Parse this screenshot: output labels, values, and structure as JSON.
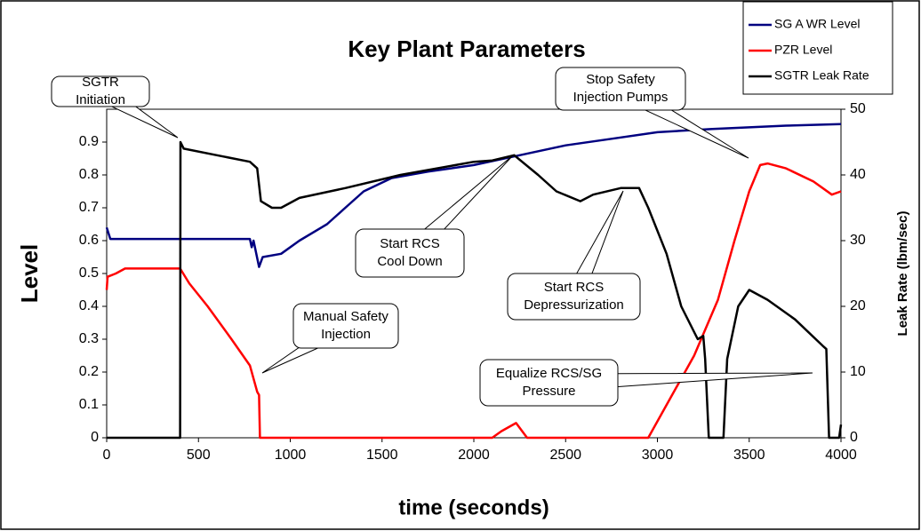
{
  "chart_data": {
    "type": "line",
    "title": "Key Plant Parameters",
    "x_label": "time (seconds)",
    "y_label": "Level",
    "y2_label": "Leak Rate (lbm/sec)",
    "xlim": [
      0,
      4000
    ],
    "xticks": [
      0,
      500,
      1000,
      1500,
      2000,
      2500,
      3000,
      3500,
      4000
    ],
    "ylim": [
      0,
      1
    ],
    "yticks": [
      0,
      0.1,
      0.2,
      0.3,
      0.4,
      0.5,
      0.6,
      0.7,
      0.8,
      0.9
    ],
    "y2lim": [
      0,
      50
    ],
    "y2ticks": [
      0,
      10,
      20,
      30,
      40,
      50
    ],
    "legend": "top-right",
    "series": [
      {
        "name": "SG A WR Level",
        "color": "#000080",
        "x": [
          0,
          20,
          780,
          790,
          800,
          830,
          850,
          950,
          1050,
          1200,
          1300,
          1400,
          1550,
          1750,
          2000,
          2250,
          2500,
          2750,
          3000,
          3300,
          3700,
          4000
        ],
        "values": [
          0.64,
          0.605,
          0.605,
          0.58,
          0.6,
          0.52,
          0.55,
          0.56,
          0.6,
          0.65,
          0.7,
          0.75,
          0.79,
          0.81,
          0.83,
          0.86,
          0.89,
          0.91,
          0.93,
          0.94,
          0.95,
          0.955
        ]
      },
      {
        "name": "PZR Level",
        "color": "#ff0000",
        "x": [
          0,
          5,
          50,
          100,
          400,
          450,
          550,
          680,
          780,
          820,
          830,
          835,
          2100,
          2150,
          2230,
          2290,
          2950,
          3050,
          3200,
          3330,
          3420,
          3500,
          3560,
          3600,
          3700,
          3850,
          3950,
          4000
        ],
        "values": [
          0.45,
          0.49,
          0.5,
          0.515,
          0.515,
          0.47,
          0.4,
          0.3,
          0.22,
          0.14,
          0.13,
          0,
          0,
          0.02,
          0.045,
          0,
          0,
          0.1,
          0.25,
          0.42,
          0.6,
          0.75,
          0.83,
          0.835,
          0.82,
          0.78,
          0.74,
          0.75
        ]
      },
      {
        "name": "SGTR Leak Rate",
        "color": "#000000",
        "axis": "y2",
        "x": [
          0,
          400,
          402,
          420,
          600,
          780,
          820,
          840,
          900,
          950,
          1050,
          1300,
          1600,
          2000,
          2100,
          2220,
          2350,
          2450,
          2580,
          2650,
          2800,
          2900,
          2950,
          3050,
          3130,
          3220,
          3250,
          3260,
          3280,
          3360,
          3380,
          3440,
          3500,
          3600,
          3750,
          3900,
          3920,
          3935,
          3990,
          4000
        ],
        "values": [
          0,
          0,
          45,
          44,
          43,
          42,
          41,
          36,
          35,
          35,
          36.5,
          38,
          40,
          42,
          42.2,
          43,
          40,
          37.5,
          36,
          37,
          38,
          38,
          35,
          28,
          20,
          15,
          15.5,
          12,
          0,
          0,
          12,
          20,
          22.5,
          21,
          18,
          14,
          13.5,
          0,
          0,
          2
        ]
      }
    ],
    "annotations": [
      {
        "lines": [
          "SGTR",
          "Initiation"
        ]
      },
      {
        "lines": [
          "Start RCS",
          "Cool Down"
        ]
      },
      {
        "lines": [
          "Start RCS",
          "Depressurization"
        ]
      },
      {
        "lines": [
          "Manual Safety",
          "Injection"
        ]
      },
      {
        "lines": [
          "Equalize RCS/SG",
          "Pressure"
        ]
      },
      {
        "lines": [
          "Stop Safety",
          "Injection Pumps"
        ]
      }
    ]
  }
}
